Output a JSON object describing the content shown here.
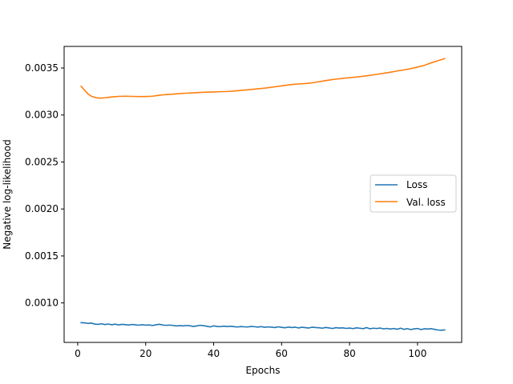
{
  "chart_data": {
    "type": "line",
    "title": "",
    "xlabel": "Epochs",
    "ylabel": "Negative log-likelihood",
    "xlim": [
      -4,
      113
    ],
    "ylim": [
      0.00058,
      0.00373
    ],
    "xticks": [
      0,
      20,
      40,
      60,
      80,
      100
    ],
    "yticks": [
      0.001,
      0.0015,
      0.002,
      0.0025,
      0.003,
      0.0035
    ],
    "ytick_labels": [
      "0.0010",
      "0.0015",
      "0.0020",
      "0.0025",
      "0.0030",
      "0.0035"
    ],
    "grid": false,
    "legend_position": "center-right",
    "series": [
      {
        "name": "Loss",
        "color": "#1f77b4",
        "x": [
          1,
          2,
          3,
          4,
          5,
          6,
          7,
          8,
          9,
          10,
          11,
          12,
          13,
          14,
          15,
          16,
          17,
          18,
          19,
          20,
          21,
          22,
          23,
          24,
          25,
          26,
          27,
          28,
          29,
          30,
          31,
          32,
          33,
          34,
          35,
          36,
          37,
          38,
          39,
          40,
          41,
          42,
          43,
          44,
          45,
          46,
          47,
          48,
          49,
          50,
          51,
          52,
          53,
          54,
          55,
          56,
          57,
          58,
          59,
          60,
          61,
          62,
          63,
          64,
          65,
          66,
          67,
          68,
          69,
          70,
          71,
          72,
          73,
          74,
          75,
          76,
          77,
          78,
          79,
          80,
          81,
          82,
          83,
          84,
          85,
          86,
          87,
          88,
          89,
          90,
          91,
          92,
          93,
          94,
          95,
          96,
          97,
          98,
          99,
          100,
          101,
          102,
          103,
          104,
          105,
          106,
          107,
          108
        ],
        "y": [
          0.00079,
          0.000788,
          0.000782,
          0.000786,
          0.000775,
          0.000772,
          0.000778,
          0.00077,
          0.000776,
          0.000768,
          0.000774,
          0.000766,
          0.000772,
          0.000769,
          0.000765,
          0.000771,
          0.000767,
          0.000763,
          0.000768,
          0.000764,
          0.000766,
          0.00076,
          0.000767,
          0.000773,
          0.000765,
          0.000762,
          0.000764,
          0.000761,
          0.000755,
          0.000758,
          0.000756,
          0.00076,
          0.000757,
          0.00075,
          0.000755,
          0.000762,
          0.000758,
          0.000752,
          0.000745,
          0.000756,
          0.00075,
          0.000748,
          0.000753,
          0.000749,
          0.000752,
          0.000748,
          0.000744,
          0.000749,
          0.000746,
          0.000744,
          0.00075,
          0.000747,
          0.000743,
          0.000748,
          0.000741,
          0.000745,
          0.000742,
          0.000738,
          0.000746,
          0.00074,
          0.000736,
          0.000743,
          0.000738,
          0.000742,
          0.000734,
          0.000741,
          0.000737,
          0.000733,
          0.000742,
          0.000738,
          0.000736,
          0.000731,
          0.000739,
          0.000734,
          0.000728,
          0.000737,
          0.000733,
          0.000735,
          0.000729,
          0.000733,
          0.000727,
          0.000735,
          0.000731,
          0.000726,
          0.000738,
          0.000725,
          0.000731,
          0.000728,
          0.000733,
          0.000724,
          0.000729,
          0.000722,
          0.000728,
          0.00072,
          0.000731,
          0.000719,
          0.000727,
          0.000716,
          0.000724,
          0.000728,
          0.000717,
          0.000725,
          0.000722,
          0.000726,
          0.000719,
          0.000712,
          0.000709,
          0.000713
        ]
      },
      {
        "name": "Val. loss",
        "color": "#ff7f0e",
        "x": [
          1,
          2,
          3,
          4,
          5,
          6,
          7,
          8,
          9,
          10,
          12,
          14,
          16,
          18,
          20,
          22,
          24,
          26,
          28,
          30,
          32,
          34,
          36,
          38,
          40,
          42,
          44,
          46,
          48,
          50,
          52,
          54,
          56,
          58,
          60,
          62,
          64,
          66,
          68,
          70,
          72,
          74,
          76,
          78,
          80,
          82,
          84,
          86,
          88,
          90,
          92,
          94,
          96,
          98,
          100,
          102,
          104,
          106,
          108
        ],
        "y": [
          0.003305,
          0.003265,
          0.003225,
          0.0032,
          0.003188,
          0.00318,
          0.00318,
          0.003183,
          0.003188,
          0.003192,
          0.003198,
          0.0032,
          0.003198,
          0.003196,
          0.003196,
          0.0032,
          0.00321,
          0.003218,
          0.003222,
          0.003228,
          0.003232,
          0.003236,
          0.00324,
          0.003243,
          0.003245,
          0.003248,
          0.00325,
          0.003255,
          0.003262,
          0.003268,
          0.003275,
          0.003282,
          0.00329,
          0.0033,
          0.00331,
          0.00332,
          0.003328,
          0.003332,
          0.003338,
          0.003348,
          0.00336,
          0.003372,
          0.003382,
          0.00339,
          0.003397,
          0.003404,
          0.003412,
          0.003422,
          0.003433,
          0.003443,
          0.003455,
          0.003468,
          0.00348,
          0.003493,
          0.00351,
          0.003528,
          0.003555,
          0.003578,
          0.0036
        ]
      }
    ]
  }
}
